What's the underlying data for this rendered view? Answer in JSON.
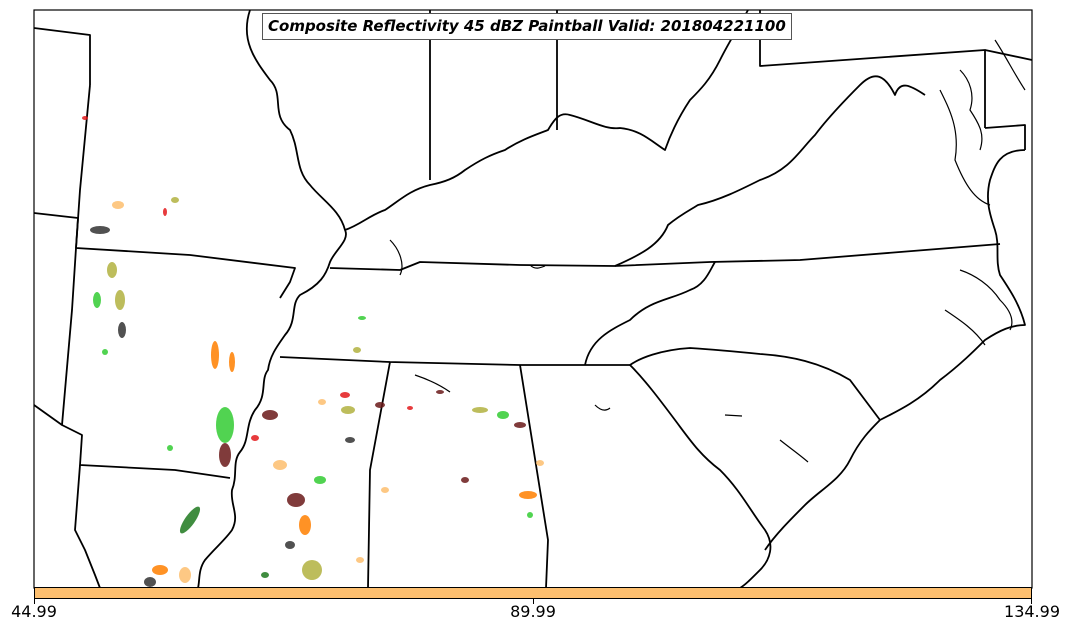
{
  "title": "Composite Reflectivity 45 dBZ Paintball Valid: 201804221100",
  "colorbar": {
    "color": "#fdbf6f",
    "ticks": [
      "44.99",
      "89.99",
      "134.99"
    ]
  },
  "colors": {
    "boundary": "#000000",
    "paintballs": [
      "#e31a1c",
      "#ff7f00",
      "#fdbf6f",
      "#b2b240",
      "#33cc33",
      "#1f7a1f",
      "#6a1a1a",
      "#333333"
    ]
  }
}
